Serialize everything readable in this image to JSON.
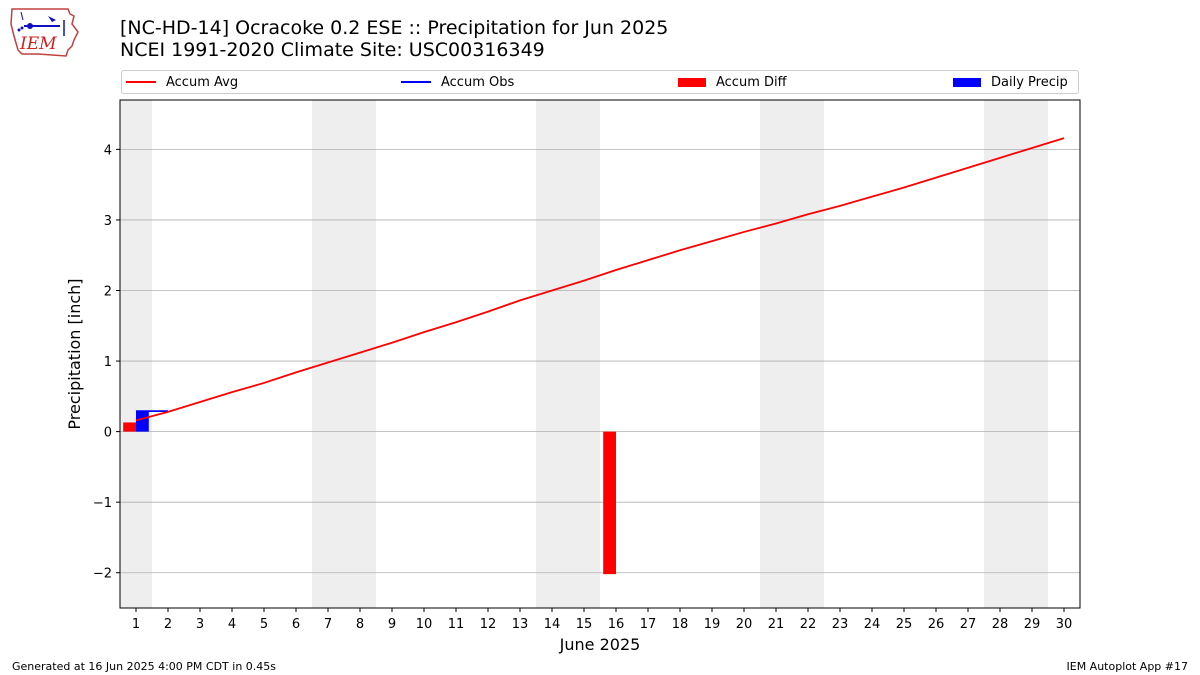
{
  "header": {
    "title_line1": "[NC-HD-14] Ocracoke 0.2 ESE :: Precipitation for Jun 2025",
    "title_line2": "NCEI 1991-2020 Climate Site: USC00316349",
    "logo_text": "IEM"
  },
  "footer": {
    "left": "Generated at 16 Jun 2025 4:00 PM CDT in 0.45s",
    "right": "IEM Autoplot App #17"
  },
  "colors": {
    "avg": "#ff0000",
    "obs": "#0000ff",
    "diff": "#ff0000",
    "daily": "#0000ff",
    "weekend_shade": "#eeeeee",
    "grid": "#b0b0b0"
  },
  "chart_data": {
    "type": "line",
    "title": "[NC-HD-14] Ocracoke 0.2 ESE :: Precipitation for Jun 2025",
    "subtitle": "NCEI 1991-2020 Climate Site: USC00316349",
    "xlabel": "June 2025",
    "ylabel": "Precipitation [inch]",
    "xlim": [
      0.5,
      30.5
    ],
    "ylim": [
      -2.5,
      4.7
    ],
    "x_ticks": [
      1,
      2,
      3,
      4,
      5,
      6,
      7,
      8,
      9,
      10,
      11,
      12,
      13,
      14,
      15,
      16,
      17,
      18,
      19,
      20,
      21,
      22,
      23,
      24,
      25,
      26,
      27,
      28,
      29,
      30
    ],
    "y_ticks": [
      -2,
      -1,
      0,
      1,
      2,
      3,
      4
    ],
    "y_tick_labels": [
      "−2",
      "−1",
      "0",
      "1",
      "2",
      "3",
      "4"
    ],
    "grid": "horizontal",
    "legend_position": "top",
    "legend": [
      "Accum Avg",
      "Accum Obs",
      "Accum Diff",
      "Daily Precip"
    ],
    "weekend_days": [
      [
        1
      ],
      [
        7,
        8
      ],
      [
        14,
        15
      ],
      [
        21,
        22
      ],
      [
        28,
        29
      ]
    ],
    "accum_avg": {
      "name": "Accum Avg",
      "x": [
        1,
        2,
        3,
        4,
        5,
        6,
        7,
        8,
        9,
        10,
        11,
        12,
        13,
        14,
        15,
        16,
        17,
        18,
        19,
        20,
        21,
        22,
        23,
        24,
        25,
        26,
        27,
        28,
        29,
        30
      ],
      "values": [
        0.16,
        0.28,
        0.42,
        0.56,
        0.69,
        0.84,
        0.98,
        1.12,
        1.26,
        1.41,
        1.55,
        1.7,
        1.86,
        2.0,
        2.14,
        2.29,
        2.43,
        2.57,
        2.7,
        2.83,
        2.95,
        3.08,
        3.2,
        3.33,
        3.46,
        3.6,
        3.74,
        3.88,
        4.02,
        4.16
      ]
    },
    "accum_obs": {
      "name": "Accum Obs",
      "x": [
        1,
        2
      ],
      "values": [
        0.29,
        0.29
      ]
    },
    "accum_diff": {
      "name": "Accum Diff",
      "x": [
        1,
        16
      ],
      "values": [
        0.13,
        -2.02
      ]
    },
    "daily_precip": {
      "name": "Daily Precip",
      "x": [
        1
      ],
      "values": [
        0.29
      ]
    }
  }
}
